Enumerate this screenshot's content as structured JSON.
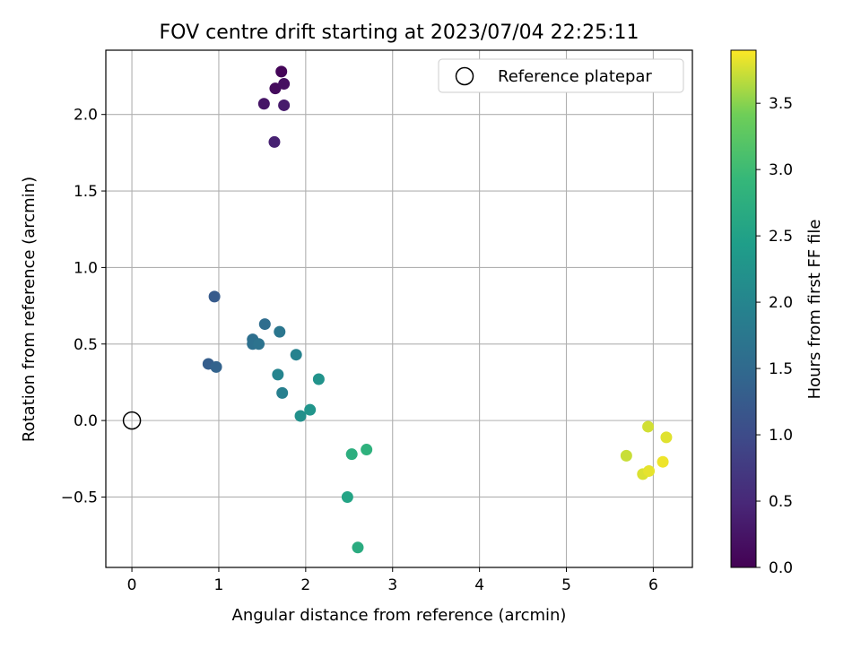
{
  "chart_data": {
    "type": "scatter",
    "title": "FOV centre drift starting at 2023/07/04 22:25:11",
    "xlabel": "Angular distance from reference (arcmin)",
    "ylabel": "Rotation from reference (arcmin)",
    "xlim": [
      -0.3,
      6.45
    ],
    "ylim": [
      -0.96,
      2.42
    ],
    "x_ticks": [
      0,
      1,
      2,
      3,
      4,
      5,
      6
    ],
    "y_ticks": [
      -0.5,
      0.0,
      0.5,
      1.0,
      1.5,
      2.0
    ],
    "x_tick_labels": [
      "0",
      "1",
      "2",
      "3",
      "4",
      "5",
      "6"
    ],
    "y_tick_labels": [
      "−0.5",
      "0.0",
      "0.5",
      "1.0",
      "1.5",
      "2.0"
    ],
    "grid": true,
    "colormap": "viridis",
    "colorbar": {
      "label": "Hours from first FF file",
      "range": [
        0.0,
        3.9
      ],
      "ticks": [
        0.0,
        0.5,
        1.0,
        1.5,
        2.0,
        2.5,
        3.0,
        3.5
      ],
      "tick_labels": [
        "0.0",
        "0.5",
        "1.0",
        "1.5",
        "2.0",
        "2.5",
        "3.0",
        "3.5"
      ]
    },
    "legend": {
      "placement": "top-right",
      "entries": [
        "Reference platepar"
      ]
    },
    "reference_point": {
      "x": 0.0,
      "y": 0.0,
      "label": "Reference platepar"
    },
    "points": [
      {
        "x": 1.72,
        "y": 2.28,
        "t": 0.05
      },
      {
        "x": 1.65,
        "y": 2.17,
        "t": 0.12
      },
      {
        "x": 1.75,
        "y": 2.2,
        "t": 0.18
      },
      {
        "x": 1.52,
        "y": 2.07,
        "t": 0.25
      },
      {
        "x": 1.75,
        "y": 2.06,
        "t": 0.32
      },
      {
        "x": 1.64,
        "y": 1.82,
        "t": 0.4
      },
      {
        "x": 0.95,
        "y": 0.81,
        "t": 1.25
      },
      {
        "x": 0.88,
        "y": 0.37,
        "t": 1.3
      },
      {
        "x": 0.97,
        "y": 0.35,
        "t": 1.38
      },
      {
        "x": 1.53,
        "y": 0.63,
        "t": 1.55
      },
      {
        "x": 1.39,
        "y": 0.53,
        "t": 1.6
      },
      {
        "x": 1.39,
        "y": 0.5,
        "t": 1.62
      },
      {
        "x": 1.46,
        "y": 0.5,
        "t": 1.66
      },
      {
        "x": 1.7,
        "y": 0.58,
        "t": 1.72
      },
      {
        "x": 1.89,
        "y": 0.43,
        "t": 1.95
      },
      {
        "x": 1.68,
        "y": 0.3,
        "t": 1.98
      },
      {
        "x": 1.73,
        "y": 0.18,
        "t": 1.9
      },
      {
        "x": 2.15,
        "y": 0.27,
        "t": 2.25
      },
      {
        "x": 1.94,
        "y": 0.03,
        "t": 2.2
      },
      {
        "x": 2.05,
        "y": 0.07,
        "t": 2.28
      },
      {
        "x": 2.53,
        "y": -0.22,
        "t": 2.75
      },
      {
        "x": 2.7,
        "y": -0.19,
        "t": 2.8
      },
      {
        "x": 2.48,
        "y": -0.5,
        "t": 2.55
      },
      {
        "x": 2.6,
        "y": -0.83,
        "t": 2.7
      },
      {
        "x": 5.94,
        "y": -0.04,
        "t": 3.75
      },
      {
        "x": 6.15,
        "y": -0.11,
        "t": 3.8
      },
      {
        "x": 5.69,
        "y": -0.23,
        "t": 3.72
      },
      {
        "x": 5.88,
        "y": -0.35,
        "t": 3.78
      },
      {
        "x": 5.95,
        "y": -0.33,
        "t": 3.82
      },
      {
        "x": 6.11,
        "y": -0.27,
        "t": 3.85
      }
    ]
  }
}
